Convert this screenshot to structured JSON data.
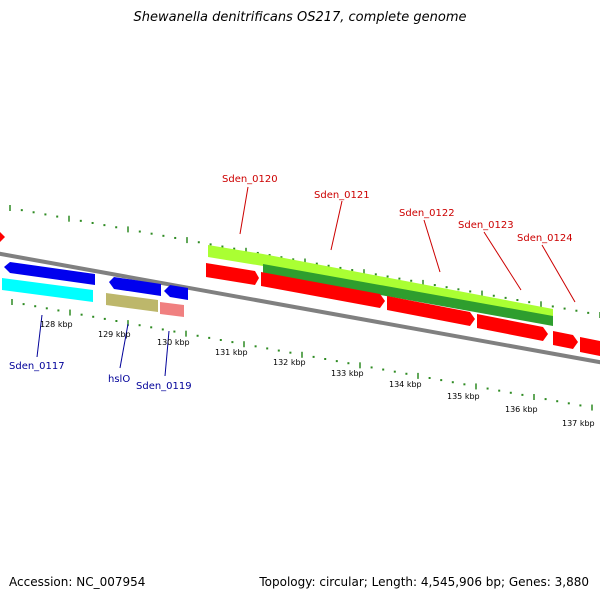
{
  "title": "Shewanella denitrificans OS217, complete genome",
  "footer": {
    "accession": "Accession: NC_007954",
    "summary": "Topology: circular; Length: 4,545,906 bp; Genes: 3,880"
  },
  "colors": {
    "backbone": "#808080",
    "tick": "#2e8b22",
    "forward_gene": "#ff0000",
    "forward_label": "#cc0000",
    "reverse_gene": "#0000ee",
    "reverse_label": "#000099",
    "cds_lime": "#aaff33",
    "cds_green": "#2e9e2e",
    "cyan_feature": "#00ffff",
    "olive_feature": "#bdb76b",
    "salmon_feature": "#f08080"
  },
  "scale_labels": [
    "128 kbp",
    "129 kbp",
    "130 kbp",
    "131 kbp",
    "132 kbp",
    "133 kbp",
    "134 kbp",
    "135 kbp",
    "136 kbp",
    "137 kbp"
  ],
  "forward_labels": [
    "Sden_0120",
    "Sden_0121",
    "Sden_0122",
    "Sden_0123",
    "Sden_0124"
  ],
  "reverse_labels": [
    "Sden_0117",
    "hslO",
    "Sden_0119"
  ]
}
